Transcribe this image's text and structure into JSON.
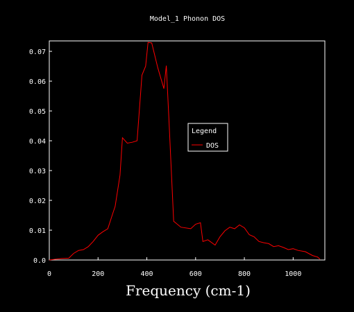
{
  "chart_data": {
    "type": "line",
    "title": "Model_1 Phonon DOS",
    "xlabel": "Frequency (cm-1)",
    "ylabel": "",
    "xlim": [
      0,
      1130
    ],
    "ylim": [
      0,
      0.0735
    ],
    "xticks": [
      0,
      200,
      400,
      600,
      800,
      1000
    ],
    "xtick_labels": [
      "0",
      "200",
      "400",
      "600",
      "800",
      "1000"
    ],
    "yticks": [
      0,
      0.01,
      0.02,
      0.03,
      0.04,
      0.05,
      0.06,
      0.07
    ],
    "ytick_labels": [
      "0.0",
      "0.01",
      "0.02",
      "0.03",
      "0.04",
      "0.05",
      "0.06",
      "0.07"
    ],
    "grid": false,
    "legend": {
      "title": "Legend",
      "placement": "center-right"
    },
    "colors": {
      "background": "#000000",
      "axes": "#ffffff",
      "text": "#ffffff",
      "series": "#ff0000"
    },
    "series": [
      {
        "name": "DOS",
        "x": [
          0,
          50,
          80,
          100,
          120,
          140,
          160,
          180,
          200,
          220,
          240,
          260,
          270,
          290,
          300,
          320,
          340,
          360,
          380,
          395,
          405,
          420,
          445,
          470,
          480,
          490,
          510,
          540,
          580,
          600,
          620,
          630,
          650,
          680,
          700,
          720,
          740,
          760,
          780,
          800,
          820,
          840,
          860,
          880,
          900,
          920,
          940,
          960,
          980,
          1000,
          1020,
          1050,
          1080,
          1100,
          1110
        ],
        "y": [
          0.0,
          0.0005,
          0.0006,
          0.0022,
          0.0032,
          0.0035,
          0.0045,
          0.0062,
          0.0083,
          0.0095,
          0.0105,
          0.0155,
          0.018,
          0.0285,
          0.041,
          0.0392,
          0.0395,
          0.04,
          0.062,
          0.065,
          0.073,
          0.0728,
          0.0645,
          0.0575,
          0.0652,
          0.048,
          0.013,
          0.011,
          0.0105,
          0.012,
          0.0125,
          0.0062,
          0.0068,
          0.005,
          0.0078,
          0.0098,
          0.011,
          0.0105,
          0.0118,
          0.0108,
          0.0085,
          0.0078,
          0.0062,
          0.0058,
          0.0055,
          0.0045,
          0.0048,
          0.0042,
          0.0035,
          0.0038,
          0.0032,
          0.0028,
          0.0015,
          0.001,
          0.0003
        ]
      }
    ]
  }
}
